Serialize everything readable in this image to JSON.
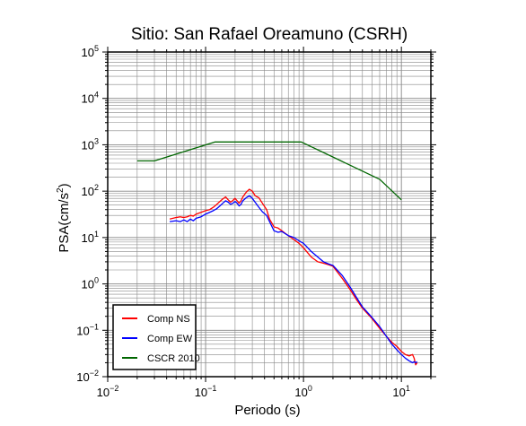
{
  "chart_data": {
    "type": "line",
    "title": "Sitio: San Rafael Oreamuno (CSRH)",
    "xlabel": "Periodo (s)",
    "ylabel_main": "PSA(cm/s",
    "ylabel_sup": "2",
    "ylabel_close": ")",
    "xscale": "log",
    "yscale": "log",
    "xlim": [
      0.01,
      20
    ],
    "ylim": [
      0.01,
      100000
    ],
    "grid": true,
    "x_ticks": [
      {
        "value": 0.01,
        "base": "10",
        "exp": "−2"
      },
      {
        "value": 0.1,
        "base": "10",
        "exp": "−1"
      },
      {
        "value": 1,
        "base": "10",
        "exp": "0"
      },
      {
        "value": 10,
        "base": "10",
        "exp": "1"
      }
    ],
    "y_ticks": [
      {
        "value": 0.01,
        "base": "10",
        "exp": "−2"
      },
      {
        "value": 0.1,
        "base": "10",
        "exp": "−1"
      },
      {
        "value": 1,
        "base": "10",
        "exp": "0"
      },
      {
        "value": 10,
        "base": "10",
        "exp": "1"
      },
      {
        "value": 100,
        "base": "10",
        "exp": "2"
      },
      {
        "value": 1000,
        "base": "10",
        "exp": "3"
      },
      {
        "value": 10000,
        "base": "10",
        "exp": "4"
      },
      {
        "value": 100000,
        "base": "10",
        "exp": "5"
      }
    ],
    "legend_position": "bottom-left",
    "series": [
      {
        "name": "Comp NS",
        "color": "#ff0000",
        "x": [
          0.043,
          0.05,
          0.055,
          0.06,
          0.065,
          0.07,
          0.075,
          0.08,
          0.09,
          0.1,
          0.11,
          0.12,
          0.13,
          0.14,
          0.15,
          0.16,
          0.17,
          0.18,
          0.19,
          0.2,
          0.21,
          0.22,
          0.23,
          0.24,
          0.26,
          0.28,
          0.3,
          0.32,
          0.35,
          0.38,
          0.42,
          0.45,
          0.5,
          0.55,
          0.6,
          0.7,
          0.8,
          0.9,
          1.0,
          1.2,
          1.4,
          1.6,
          1.8,
          2.0,
          2.5,
          3.0,
          3.5,
          4.0,
          5.0,
          6.0,
          7.0,
          8.0,
          9.0,
          10.0,
          11.0,
          12.0,
          13.0,
          13.5,
          14.0,
          14.5
        ],
        "y": [
          25,
          27,
          28,
          27,
          28,
          30,
          29,
          32,
          35,
          38,
          40,
          45,
          52,
          60,
          68,
          75,
          65,
          58,
          63,
          70,
          62,
          55,
          62,
          75,
          95,
          110,
          100,
          80,
          72,
          55,
          40,
          25,
          17,
          16,
          14,
          11,
          9,
          7.5,
          6,
          3.8,
          3.0,
          2.8,
          2.6,
          2.4,
          1.3,
          0.75,
          0.45,
          0.3,
          0.18,
          0.11,
          0.075,
          0.055,
          0.045,
          0.035,
          0.03,
          0.028,
          0.03,
          0.025,
          0.018,
          0.02
        ]
      },
      {
        "name": "Comp EW",
        "color": "#0000ff",
        "x": [
          0.043,
          0.05,
          0.055,
          0.06,
          0.065,
          0.07,
          0.075,
          0.08,
          0.09,
          0.1,
          0.11,
          0.12,
          0.13,
          0.14,
          0.15,
          0.16,
          0.17,
          0.18,
          0.19,
          0.2,
          0.21,
          0.22,
          0.23,
          0.24,
          0.26,
          0.28,
          0.3,
          0.32,
          0.35,
          0.38,
          0.42,
          0.45,
          0.5,
          0.55,
          0.6,
          0.7,
          0.8,
          0.9,
          1.0,
          1.2,
          1.4,
          1.6,
          1.8,
          2.0,
          2.5,
          3.0,
          3.5,
          4.0,
          5.0,
          6.0,
          7.0,
          8.0,
          9.0,
          10.0,
          11.0,
          12.0,
          13.0,
          13.5,
          14.0,
          14.5
        ],
        "y": [
          22,
          23,
          22,
          24,
          22,
          25,
          23,
          26,
          28,
          32,
          35,
          38,
          42,
          48,
          55,
          62,
          58,
          52,
          55,
          60,
          55,
          48,
          52,
          62,
          72,
          80,
          70,
          58,
          45,
          36,
          30,
          22,
          14,
          13,
          13.5,
          11,
          10,
          8.5,
          7.5,
          5.0,
          3.8,
          3.0,
          2.7,
          2.5,
          1.5,
          0.85,
          0.5,
          0.32,
          0.19,
          0.12,
          0.075,
          0.05,
          0.038,
          0.03,
          0.025,
          0.022,
          0.02,
          0.021,
          0.02,
          0.021
        ]
      },
      {
        "name": "CSCR 2010",
        "color": "#006600",
        "x": [
          0.02,
          0.03,
          0.125,
          0.95,
          6.0,
          10.0
        ],
        "y": [
          450,
          450,
          1150,
          1150,
          180,
          65
        ]
      }
    ]
  }
}
